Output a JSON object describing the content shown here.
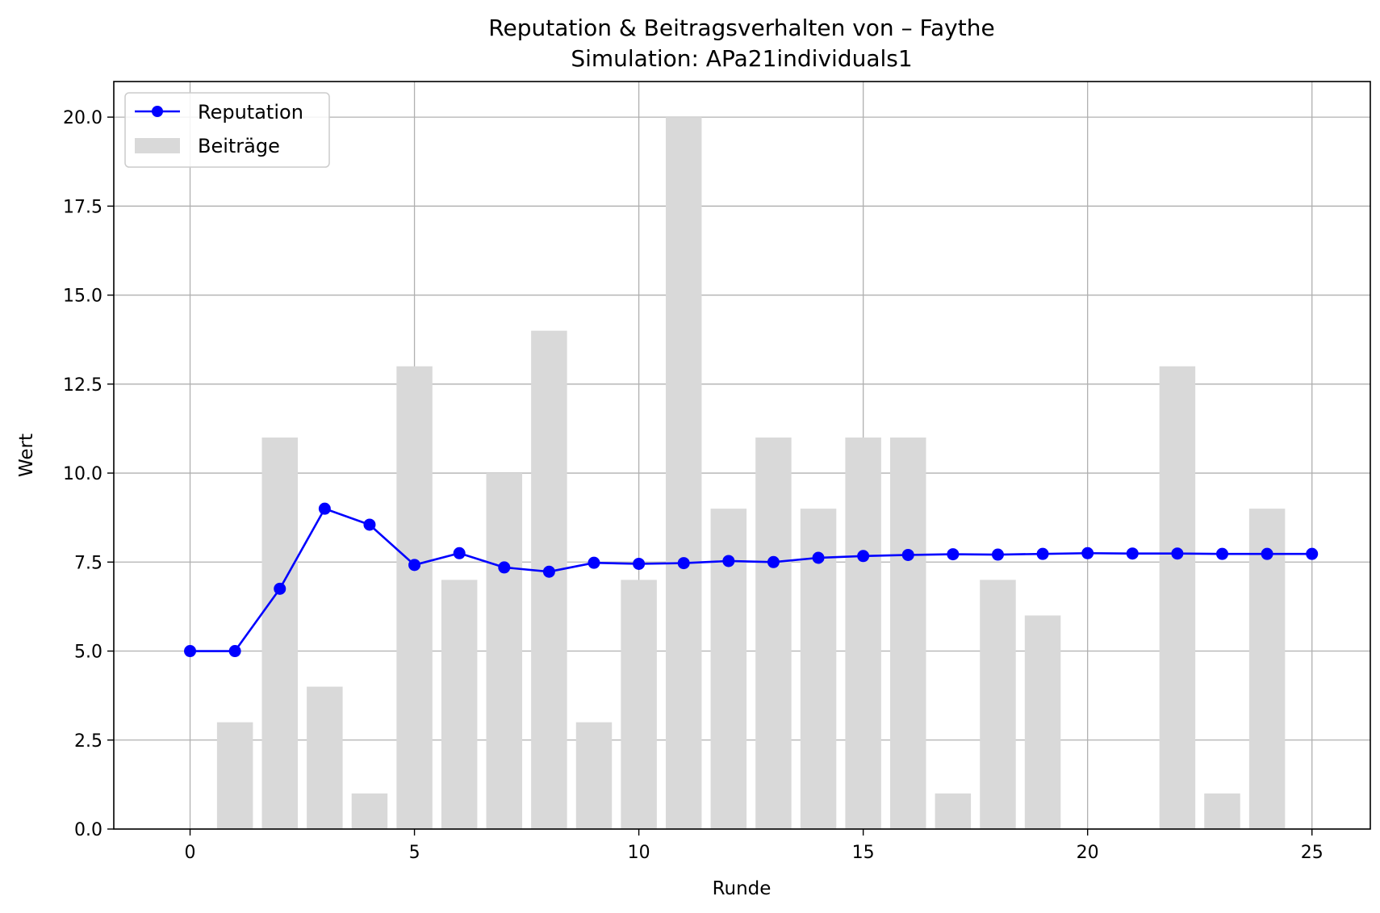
{
  "chart_data": {
    "type": "bar+line",
    "title": "Reputation & Beitragsverhalten von – Faythe",
    "subtitle": "Simulation: APa21individuals1",
    "xlabel": "Runde",
    "ylabel": "Wert",
    "xlim": [
      -1.7,
      26.3
    ],
    "ylim": [
      0,
      21
    ],
    "xticks": [
      0,
      5,
      10,
      15,
      20,
      25
    ],
    "xtick_labels": [
      "0",
      "5",
      "10",
      "15",
      "20",
      "25"
    ],
    "yticks": [
      0,
      2.5,
      5,
      7.5,
      10,
      12.5,
      15,
      17.5,
      20
    ],
    "ytick_labels": [
      "0.0",
      "2.5",
      "5.0",
      "7.5",
      "10.0",
      "12.5",
      "15.0",
      "17.5",
      "20.0"
    ],
    "grid": true,
    "legend_position": "top-left",
    "series": [
      {
        "name": "Reputation",
        "kind": "line",
        "color": "#0000ff",
        "x": [
          0,
          1,
          2,
          3,
          4,
          5,
          6,
          7,
          8,
          9,
          10,
          11,
          12,
          13,
          14,
          15,
          16,
          17,
          18,
          19,
          20,
          21,
          22,
          23,
          24,
          25
        ],
        "values": [
          5.0,
          5.0,
          6.75,
          9.0,
          8.55,
          7.42,
          7.75,
          7.35,
          7.23,
          7.48,
          7.45,
          7.47,
          7.53,
          7.5,
          7.62,
          7.67,
          7.7,
          7.72,
          7.71,
          7.73,
          7.75,
          7.74,
          7.74,
          7.73,
          7.73,
          7.73
        ]
      },
      {
        "name": "Beiträge",
        "kind": "bar",
        "color": "#d9d9d9",
        "x": [
          1,
          2,
          3,
          4,
          5,
          6,
          7,
          8,
          9,
          10,
          11,
          12,
          13,
          14,
          15,
          16,
          17,
          18,
          19,
          20,
          21,
          22,
          23,
          24
        ],
        "values": [
          3,
          11,
          4,
          1,
          13,
          7,
          10,
          14,
          3,
          7,
          20,
          9,
          11,
          9,
          11,
          11,
          1,
          7,
          6,
          0,
          0,
          13,
          1,
          9
        ]
      }
    ]
  }
}
